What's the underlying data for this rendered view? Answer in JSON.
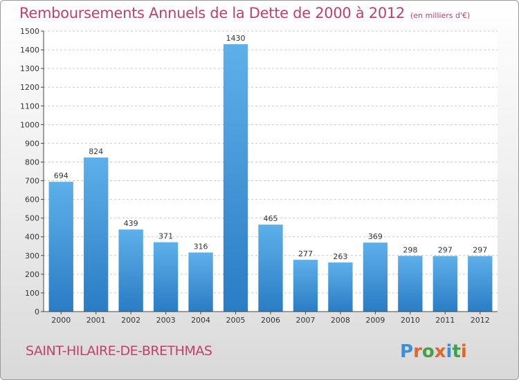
{
  "header": {
    "title": "Remboursements Annuels de la Dette de 2000 à 2012",
    "subtitle": "(en milliers d'€)"
  },
  "footer": {
    "town": "SAINT-HILAIRE-DE-BRETHMAS",
    "brand": "Proxiti",
    "brand_colors": [
      "#3a8fd6",
      "#e0662a",
      "#43a047",
      "#e0662a",
      "#3a8fd6",
      "#43a047",
      "#e0662a"
    ]
  },
  "colors": {
    "bar_top": "#5eb0ea",
    "bar_bottom": "#2a7cc4",
    "grid": "#c9c9c9",
    "axis": "#444444",
    "text": "#333333",
    "accent": "#c0406a"
  },
  "chart_data": {
    "type": "bar",
    "title": "Remboursements Annuels de la Dette de 2000 à 2012",
    "subtitle": "(en milliers d'€)",
    "categories": [
      "2000",
      "2001",
      "2002",
      "2003",
      "2004",
      "2005",
      "2006",
      "2007",
      "2008",
      "2009",
      "2010",
      "2011",
      "2012"
    ],
    "values": [
      694,
      824,
      439,
      371,
      316,
      1430,
      465,
      277,
      263,
      369,
      298,
      297,
      297
    ],
    "ylim": [
      0,
      1500
    ],
    "yticks": [
      0,
      100,
      200,
      300,
      400,
      500,
      600,
      700,
      800,
      900,
      1000,
      1100,
      1200,
      1300,
      1400,
      1500
    ],
    "grid": true,
    "xlabel": "",
    "ylabel": ""
  }
}
